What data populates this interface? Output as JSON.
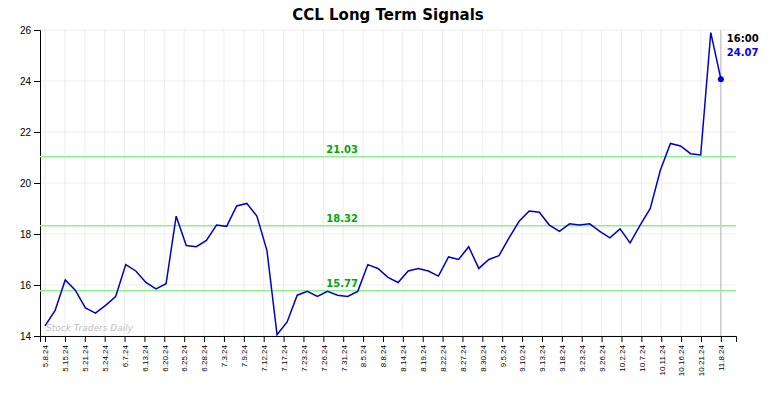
{
  "chart_data": {
    "type": "line",
    "title": "CCL Long Term Signals",
    "color": "#0000cc",
    "x": [
      0,
      1,
      2,
      3,
      4,
      5,
      6,
      7,
      8,
      9,
      10,
      11,
      12,
      13,
      14,
      15,
      16,
      17,
      18,
      19,
      20,
      21,
      22,
      23,
      24,
      25,
      26,
      27,
      28,
      29,
      30,
      31,
      32,
      33,
      34,
      35,
      36,
      37,
      38,
      39,
      40,
      41,
      42,
      43,
      44,
      45,
      46,
      47,
      48,
      49,
      50,
      51,
      52,
      53,
      54,
      55,
      56,
      57,
      58,
      59,
      60,
      61,
      62,
      63,
      64,
      65,
      66,
      67
    ],
    "values": [
      14.4,
      15.0,
      16.2,
      15.8,
      15.1,
      14.9,
      15.2,
      15.55,
      16.8,
      16.55,
      16.1,
      15.85,
      16.05,
      18.7,
      17.55,
      17.5,
      17.75,
      18.35,
      18.3,
      19.1,
      19.2,
      18.7,
      17.35,
      14.05,
      14.55,
      15.6,
      15.75,
      15.55,
      15.75,
      15.6,
      15.55,
      15.75,
      16.8,
      16.65,
      16.3,
      16.1,
      16.55,
      16.65,
      16.55,
      16.35,
      17.1,
      17.0,
      17.5,
      16.65,
      17.0,
      17.15,
      17.85,
      18.5,
      18.9,
      18.85,
      18.35,
      18.1,
      18.4,
      18.35,
      18.4,
      18.1,
      17.85,
      18.2,
      17.65,
      18.35,
      19.0,
      20.5,
      21.55,
      21.45,
      21.15,
      21.1,
      25.9,
      24.07
    ],
    "xlim": [
      -0.5,
      68.5
    ],
    "xticks": [
      {
        "value": 0,
        "label": "5.8.24"
      },
      {
        "value": 1.9706,
        "label": "5.15.24"
      },
      {
        "value": 3.9412,
        "label": "5.21.24"
      },
      {
        "value": 5.9118,
        "label": "5.24.24"
      },
      {
        "value": 7.8824,
        "label": "6.7.24"
      },
      {
        "value": 9.8529,
        "label": "6.13.24"
      },
      {
        "value": 11.8235,
        "label": "6.20.24"
      },
      {
        "value": 13.7941,
        "label": "6.25.24"
      },
      {
        "value": 15.7647,
        "label": "6.28.24"
      },
      {
        "value": 17.7353,
        "label": "7.3.24"
      },
      {
        "value": 19.7059,
        "label": "7.9.24"
      },
      {
        "value": 21.6765,
        "label": "7.12.24"
      },
      {
        "value": 23.6471,
        "label": "7.17.24"
      },
      {
        "value": 25.6176,
        "label": "7.23.24"
      },
      {
        "value": 27.5882,
        "label": "7.26.24"
      },
      {
        "value": 29.5588,
        "label": "7.31.24"
      },
      {
        "value": 31.5294,
        "label": "8.5.24"
      },
      {
        "value": 33.5,
        "label": "8.8.24"
      },
      {
        "value": 35.4706,
        "label": "8.14.24"
      },
      {
        "value": 37.4412,
        "label": "8.19.24"
      },
      {
        "value": 39.4118,
        "label": "8.22.24"
      },
      {
        "value": 41.3824,
        "label": "8.27.24"
      },
      {
        "value": 43.3529,
        "label": "8.30.24"
      },
      {
        "value": 45.3235,
        "label": "9.5.24"
      },
      {
        "value": 47.2941,
        "label": "9.10.24"
      },
      {
        "value": 49.2647,
        "label": "9.13.24"
      },
      {
        "value": 51.2353,
        "label": "9.18.24"
      },
      {
        "value": 53.2059,
        "label": "9.23.24"
      },
      {
        "value": 55.1765,
        "label": "9.26.24"
      },
      {
        "value": 57.1471,
        "label": "10.2.24"
      },
      {
        "value": 59.1176,
        "label": "10.7.24"
      },
      {
        "value": 61.0882,
        "label": "10.11.24"
      },
      {
        "value": 63.0588,
        "label": "10.16.24"
      },
      {
        "value": 65.0294,
        "label": "10.21.24"
      },
      {
        "value": 67,
        "label": "11.8.24"
      }
    ],
    "ylim": [
      14,
      26
    ],
    "yticks": [
      14,
      16,
      18,
      20,
      22,
      24,
      26
    ],
    "grid": true,
    "hlines": [
      {
        "value": 15.77,
        "label": "15.77",
        "color": "#90ee90"
      },
      {
        "value": 18.32,
        "label": "18.32",
        "color": "#90ee90"
      },
      {
        "value": 21.03,
        "label": "21.03",
        "color": "#90ee90"
      }
    ],
    "annotations": [
      {
        "text": "Stock Traders Daily",
        "color": "#c0c0c0"
      },
      {
        "text": "16:00",
        "color": "#000000"
      },
      {
        "text": "24.07",
        "color": "#0000ff"
      }
    ]
  }
}
